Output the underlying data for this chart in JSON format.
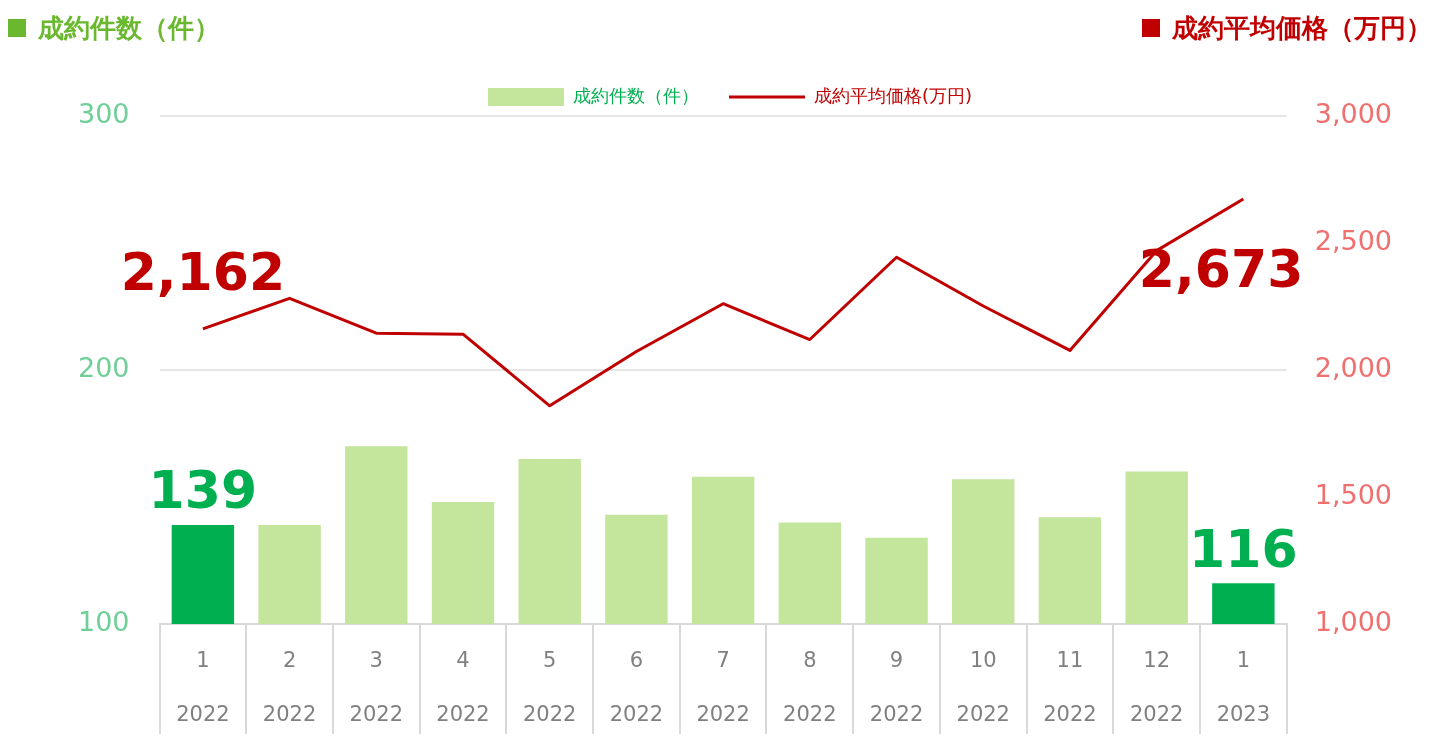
{
  "chart_data": {
    "type": "bar",
    "ylabel": "成約件数（件）",
    "y2label": "成約平均価格（万円）",
    "categories": [
      "1\n2022",
      "2\n2022",
      "3\n2022",
      "4\n2022",
      "5\n2022",
      "6\n2022",
      "7\n2022",
      "8\n2022",
      "9\n2022",
      "10\n2022",
      "11\n2022",
      "12\n2022",
      "1\n2023"
    ],
    "series": [
      {
        "name": "成約件数（件）",
        "color": "#c3e59c",
        "colors": [
          "#00b050",
          "#c3e59c",
          "#c3e59c",
          "#c3e59c",
          "#c3e59c",
          "#c3e59c",
          "#c3e59c",
          "#c3e59c",
          "#c3e59c",
          "#c3e59c",
          "#c3e59c",
          "#c3e59c",
          "#00b050"
        ],
        "values": [
          139,
          139,
          170,
          148,
          165,
          143,
          158,
          140,
          134,
          157,
          142,
          160,
          116
        ],
        "value_labels": [
          "139",
          null,
          null,
          null,
          null,
          null,
          null,
          null,
          null,
          null,
          null,
          null,
          "116"
        ]
      },
      {
        "name": "成約平均価格(万円)",
        "type": "line",
        "axis": "y2",
        "color": "#c00000",
        "values": [
          2162,
          2282,
          2145,
          2141,
          1859,
          2073,
          2261,
          2120,
          2444,
          2252,
          2077,
          2470,
          2673
        ],
        "value_labels": [
          "2,162",
          null,
          null,
          null,
          null,
          null,
          null,
          null,
          null,
          null,
          null,
          null,
          "2,673"
        ]
      }
    ],
    "ylim": [
      100,
      300
    ],
    "yticks": [
      100,
      200,
      300
    ],
    "y2lim": [
      1000,
      3000
    ],
    "y2ticks": [
      {
        "value": 1000,
        "label": "1,000"
      },
      {
        "value": 1500,
        "label": "1,500"
      },
      {
        "value": 2000,
        "label": "2,000"
      },
      {
        "value": 2500,
        "label": "2,500"
      },
      {
        "value": 3000,
        "label": "3,000"
      }
    ],
    "grid": "y",
    "legend": "top"
  }
}
